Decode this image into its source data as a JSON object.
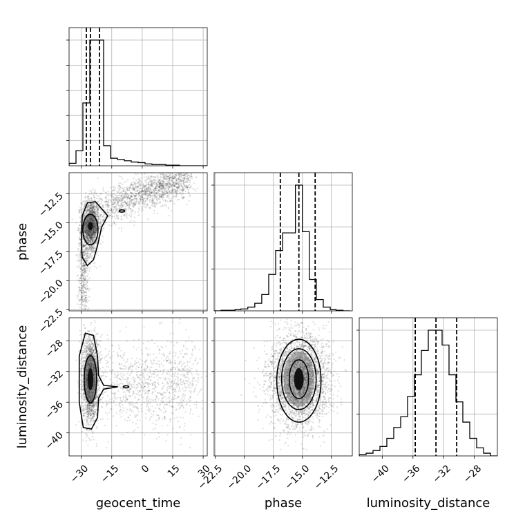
{
  "chart_data": {
    "type": "corner",
    "parameters": [
      "geocent_time",
      "phase",
      "luminosity_distance"
    ],
    "ranges": {
      "geocent_time": [
        -36,
        32
      ],
      "phase": [
        -22.6,
        -10.7
      ],
      "luminosity_distance": [
        -43,
        -25
      ]
    },
    "ticks": {
      "geocent_time": [
        "-30",
        "-15",
        "0",
        "15",
        "30"
      ],
      "phase_x": [
        "-22.5",
        "-20.0",
        "-17.5",
        "-15.0",
        "-12.5"
      ],
      "phase_y": [
        "-12.5",
        "-15.0",
        "-17.5",
        "-20.0",
        "-22.5"
      ],
      "luminosity_distance_x": [
        "-40",
        "-36",
        "-32",
        "-28"
      ],
      "luminosity_distance_y": [
        "-28",
        "-32",
        "-36",
        "-40"
      ]
    },
    "grid": true,
    "histograms": {
      "geocent_time": {
        "bins": [
          -36,
          -32.6,
          -29.2,
          -25.8,
          -22.4,
          -19,
          -15.6,
          -12.2,
          -8.8,
          -5.4,
          -2,
          1.4,
          4.8,
          8.2,
          11.6,
          15,
          18.4,
          21.8,
          25.2,
          28.6,
          32
        ],
        "counts": [
          0.02,
          0.12,
          0.5,
          1.0,
          1.0,
          0.16,
          0.06,
          0.05,
          0.04,
          0.03,
          0.025,
          0.015,
          0.01,
          0.01,
          0.005,
          0.005,
          0,
          0,
          0,
          0
        ],
        "quantiles": [
          -27.5,
          -25.5,
          -21.0
        ]
      },
      "phase": {
        "bins": [
          -22.6,
          -22.0,
          -21.4,
          -20.8,
          -20.3,
          -19.7,
          -19.1,
          -18.5,
          -17.9,
          -17.3,
          -16.7,
          -16.2,
          -15.6,
          -15.0,
          -14.4,
          -13.8,
          -13.2,
          -12.6,
          -12.1,
          -11.5,
          -10.9
        ],
        "counts": [
          0,
          0.005,
          0.005,
          0.01,
          0.015,
          0.03,
          0.06,
          0.13,
          0.29,
          0.48,
          0.62,
          0.62,
          1.0,
          0.63,
          0.25,
          0.09,
          0.03,
          0.01,
          0.005,
          0
        ],
        "quantiles": [
          -16.9,
          -15.3,
          -13.9
        ]
      },
      "luminosity_distance": {
        "bins": [
          -43,
          -42.1,
          -41.2,
          -40.3,
          -39.4,
          -38.5,
          -37.6,
          -36.7,
          -35.8,
          -34.9,
          -34,
          -33.1,
          -32.2,
          -31.3,
          -30.4,
          -29.5,
          -28.6,
          -27.7,
          -26.8,
          -25.9,
          -25
        ],
        "counts": [
          0.01,
          0.02,
          0.04,
          0.07,
          0.13,
          0.21,
          0.29,
          0.44,
          0.6,
          0.78,
          0.93,
          0.93,
          0.82,
          0.6,
          0.4,
          0.25,
          0.13,
          0.06,
          0.02,
          0
        ],
        "quantiles": [
          -35.7,
          -33.0,
          -30.3
        ]
      }
    },
    "scatter_2d": [
      {
        "x": "geocent_time",
        "y": "phase",
        "mode": [
          -25.5,
          -15.3
        ],
        "tail_to": [
          20,
          -11.5
        ]
      },
      {
        "x": "geocent_time",
        "y": "luminosity_distance",
        "mode": [
          -25.5,
          -33
        ],
        "tail_to": [
          25,
          -34
        ]
      },
      {
        "x": "phase",
        "y": "luminosity_distance",
        "mode": [
          -15.3,
          -33
        ],
        "tail_to": null
      }
    ]
  }
}
